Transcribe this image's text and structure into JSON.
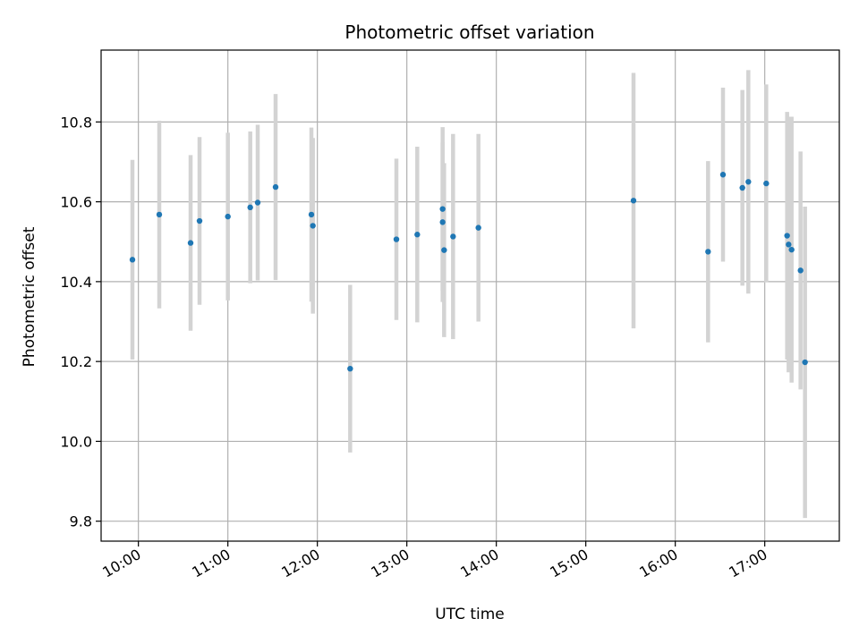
{
  "chart_data": {
    "type": "scatter",
    "title": "Photometric offset variation",
    "xlabel": "UTC time",
    "ylabel": "Photometric offset",
    "x_axis_format": "time HH:MM",
    "xlim": [
      "09:35",
      "17:50"
    ],
    "ylim": [
      9.75,
      10.98
    ],
    "x_ticks": [
      "10:00",
      "11:00",
      "12:00",
      "13:00",
      "14:00",
      "15:00",
      "16:00",
      "17:00"
    ],
    "y_ticks": [
      "9.8",
      "10.0",
      "10.2",
      "10.4",
      "10.6",
      "10.8"
    ],
    "grid": true,
    "legend": false,
    "colors": {
      "point": "#1f77b4",
      "errorbar": "#d3d3d3",
      "grid": "#b0b0b0"
    },
    "points": [
      {
        "x": "09:56",
        "y": 10.455,
        "yerr": 0.25
      },
      {
        "x": "10:14",
        "y": 10.568,
        "yerr": 0.235
      },
      {
        "x": "10:35",
        "y": 10.497,
        "yerr": 0.22
      },
      {
        "x": "10:41",
        "y": 10.552,
        "yerr": 0.21
      },
      {
        "x": "11:00",
        "y": 10.563,
        "yerr": 0.21
      },
      {
        "x": "11:15",
        "y": 10.586,
        "yerr": 0.19
      },
      {
        "x": "11:20",
        "y": 10.598,
        "yerr": 0.195
      },
      {
        "x": "11:32",
        "y": 10.637,
        "yerr": 0.233
      },
      {
        "x": "11:56",
        "y": 10.568,
        "yerr": 0.218
      },
      {
        "x": "11:57",
        "y": 10.54,
        "yerr": 0.22
      },
      {
        "x": "12:22",
        "y": 10.182,
        "yerr": 0.21
      },
      {
        "x": "12:53",
        "y": 10.506,
        "yerr": 0.202
      },
      {
        "x": "13:07",
        "y": 10.518,
        "yerr": 0.22
      },
      {
        "x": "13:24",
        "y": 10.582,
        "yerr": 0.205
      },
      {
        "x": "13:24",
        "y": 10.549,
        "yerr": 0.2
      },
      {
        "x": "13:25",
        "y": 10.479,
        "yerr": 0.218
      },
      {
        "x": "13:31",
        "y": 10.513,
        "yerr": 0.257
      },
      {
        "x": "13:48",
        "y": 10.535,
        "yerr": 0.235
      },
      {
        "x": "15:32",
        "y": 10.603,
        "yerr": 0.32
      },
      {
        "x": "16:22",
        "y": 10.475,
        "yerr": 0.227
      },
      {
        "x": "16:32",
        "y": 10.668,
        "yerr": 0.218
      },
      {
        "x": "16:45",
        "y": 10.635,
        "yerr": 0.245
      },
      {
        "x": "16:49",
        "y": 10.65,
        "yerr": 0.28
      },
      {
        "x": "17:01",
        "y": 10.646,
        "yerr": 0.248
      },
      {
        "x": "17:15",
        "y": 10.515,
        "yerr": 0.31
      },
      {
        "x": "17:16",
        "y": 10.493,
        "yerr": 0.32
      },
      {
        "x": "17:18",
        "y": 10.48,
        "yerr": 0.333
      },
      {
        "x": "17:24",
        "y": 10.428,
        "yerr": 0.298
      },
      {
        "x": "17:27",
        "y": 10.198,
        "yerr": 0.39
      }
    ]
  }
}
